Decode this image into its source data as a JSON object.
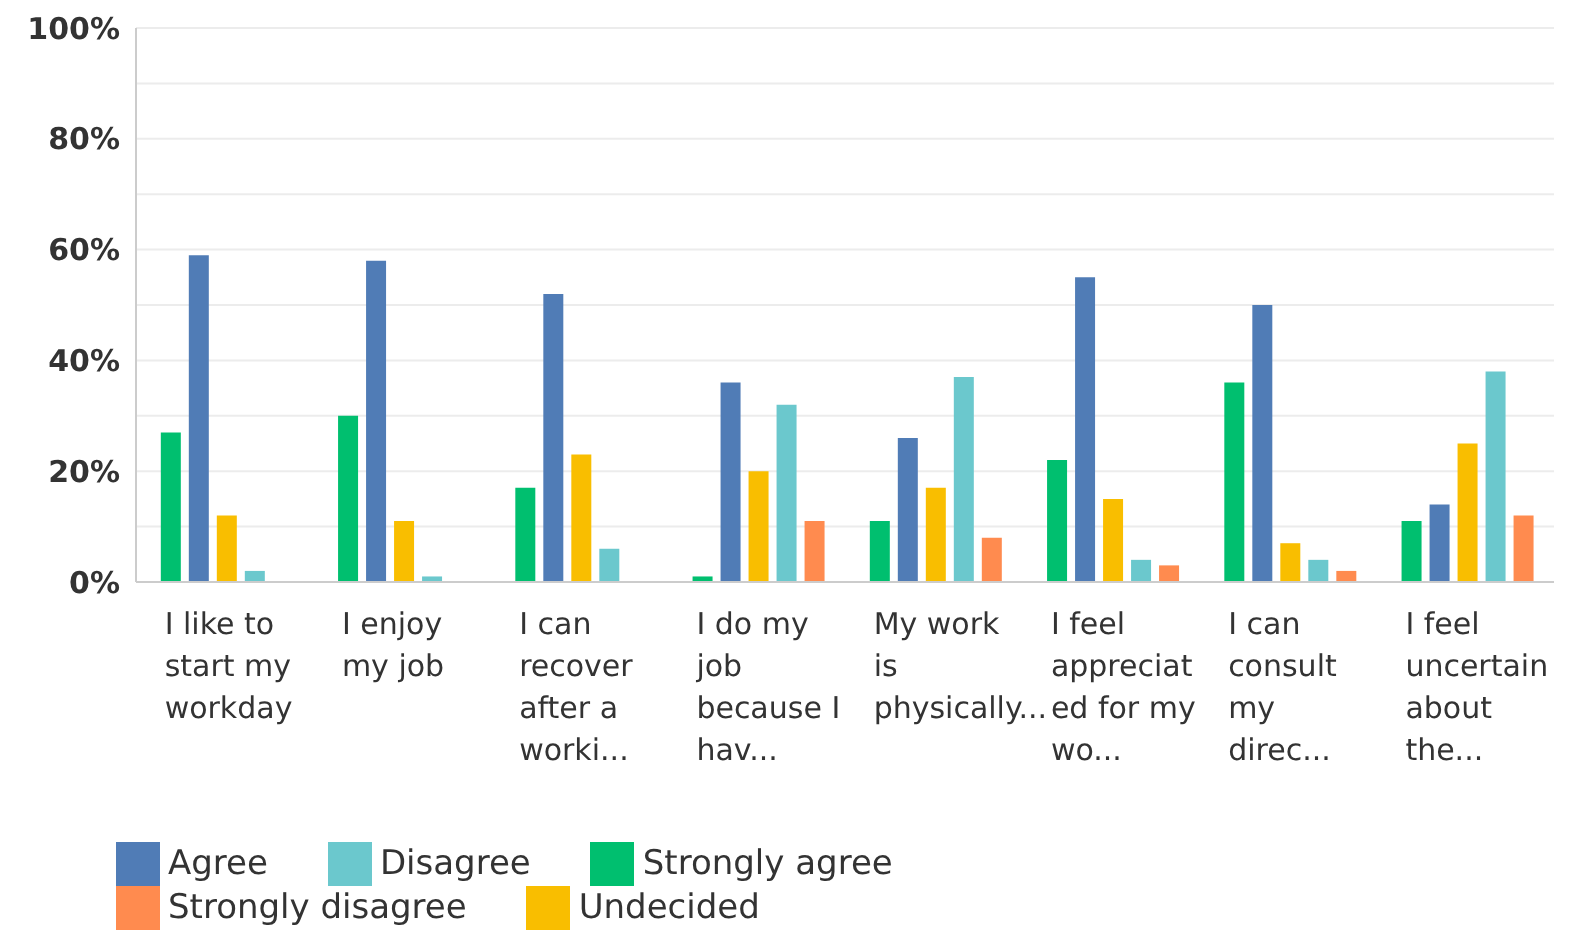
{
  "chart_data": {
    "type": "bar",
    "categories": [
      "I like to start my workday",
      "I enjoy my job",
      "I can recover after a worki...",
      "I do my job because I hav...",
      "My work is physically...",
      "I feel appreciated for my wo...",
      "I can consult my direc...",
      "I feel uncertain about the..."
    ],
    "series": [
      {
        "name": "Strongly agree",
        "color": "#00bf6f",
        "values": [
          27,
          30,
          17,
          1,
          11,
          22,
          36,
          11
        ]
      },
      {
        "name": "Agree",
        "color": "#507cb6",
        "values": [
          59,
          58,
          52,
          36,
          26,
          55,
          50,
          14
        ]
      },
      {
        "name": "Undecided",
        "color": "#f9be00",
        "values": [
          12,
          11,
          23,
          20,
          17,
          15,
          7,
          25
        ]
      },
      {
        "name": "Disagree",
        "color": "#6bc8cd",
        "values": [
          2,
          1,
          6,
          32,
          37,
          4,
          4,
          38
        ]
      },
      {
        "name": "Strongly disagree",
        "color": "#ff8b4f",
        "values": [
          0,
          0,
          0,
          11,
          8,
          3,
          2,
          12
        ]
      }
    ],
    "ylim": [
      0,
      100
    ],
    "yticks": [
      {
        "value": 0,
        "label": "0%"
      },
      {
        "value": 10,
        "label": null
      },
      {
        "value": 20,
        "label": "20%"
      },
      {
        "value": 30,
        "label": null
      },
      {
        "value": 40,
        "label": "40%"
      },
      {
        "value": 50,
        "label": null
      },
      {
        "value": 60,
        "label": "60%"
      },
      {
        "value": 70,
        "label": null
      },
      {
        "value": 80,
        "label": "80%"
      },
      {
        "value": 90,
        "label": null
      },
      {
        "value": 100,
        "label": "100%"
      }
    ],
    "grid": "y",
    "legend": "bottom left"
  }
}
